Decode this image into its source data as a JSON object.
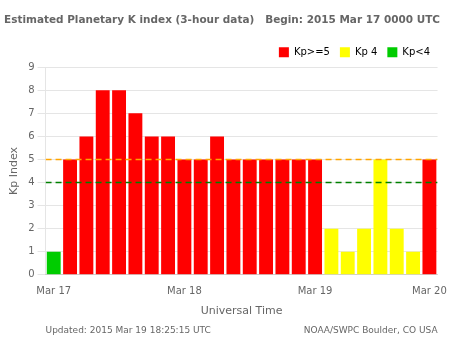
{
  "chart_data": {
    "type": "bar",
    "title": "Estimated Planetary K index (3-hour data)   Begin: 2015 Mar 17 0000 UTC",
    "x_label": "Universal Time",
    "y_label": "Kp Index",
    "categories": [
      "Mar 17",
      null,
      null,
      null,
      null,
      null,
      null,
      null,
      "Mar 18",
      null,
      null,
      null,
      null,
      null,
      null,
      null,
      "Mar 19",
      null,
      null,
      null,
      null,
      null,
      null,
      "Mar 20"
    ],
    "values": [
      1,
      5,
      6,
      8,
      8,
      7,
      6,
      6,
      5,
      5,
      6,
      5,
      5,
      5,
      5,
      5,
      5,
      2,
      1,
      2,
      5,
      2,
      1,
      5
    ],
    "colors": [
      "#00cc00",
      "#ff0000",
      "#ff0000",
      "#ff0000",
      "#ff0000",
      "#ff0000",
      "#ff0000",
      "#ff0000",
      "#ff0000",
      "#ff0000",
      "#ff0000",
      "#ff0000",
      "#ff0000",
      "#ff0000",
      "#ff0000",
      "#ff0000",
      "#ff0000",
      "#ffff00",
      "#ffff00",
      "#ffff00",
      "#ffff00",
      "#ffff00",
      "#ffff00",
      "#ff0000"
    ],
    "ylim": [
      0,
      9
    ],
    "yticks": [
      0,
      1,
      2,
      3,
      4,
      5,
      6,
      7,
      8,
      9
    ],
    "grid": true,
    "legend": "upper right",
    "legend_entries": [
      {
        "label": "Kp>=5",
        "color": "#ff0000"
      },
      {
        "label": "Kp 4",
        "color": "#ffff00"
      },
      {
        "label": "Kp<4",
        "color": "#00cc00"
      }
    ],
    "reference_lines": [
      {
        "value": 5,
        "color": "orange",
        "line_style": "dashed"
      },
      {
        "value": 4,
        "color": "green",
        "line_style": "dashed"
      }
    ],
    "annotations": [
      "Updated: 2015 Mar 19 18:25:15 UTC",
      "NOAA/SWPC Boulder, CO USA"
    ]
  }
}
